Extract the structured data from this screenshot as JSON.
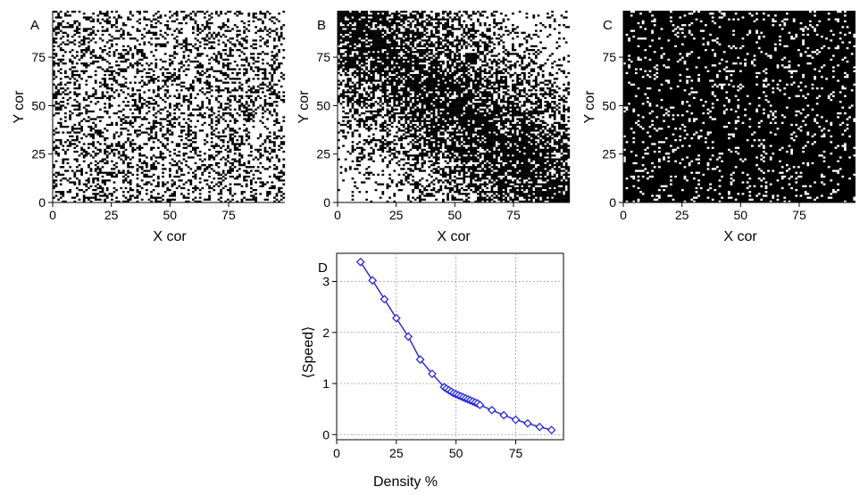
{
  "colors": {
    "line": "#1f1fe0",
    "grid": "#9a9a9a",
    "occupied_A_B": "#000000",
    "empty_A_B": "#ffffff",
    "occupied_C": "#ffffff",
    "empty_C": "#000000"
  },
  "chart_data": [
    {
      "panel": "A",
      "type": "heatmap",
      "description_encoding": "binary lattice occupancy, black = occupied",
      "xlabel": "X cor",
      "ylabel": "Y cor",
      "xlim": [
        0,
        99
      ],
      "ylim": [
        0,
        99
      ],
      "xticks": [
        "0",
        "25",
        "50",
        "75"
      ],
      "yticks": [
        "0",
        "25",
        "50",
        "75"
      ],
      "grid_size": [
        100,
        100
      ],
      "occupied_fraction": 0.3,
      "pattern": "uniform"
    },
    {
      "panel": "B",
      "type": "heatmap",
      "description_encoding": "binary lattice occupancy, black = occupied",
      "xlabel": "X cor",
      "ylabel": "Y cor",
      "xlim": [
        0,
        99
      ],
      "ylim": [
        0,
        99
      ],
      "xticks": [
        "0",
        "25",
        "50",
        "75"
      ],
      "yticks": [
        "0",
        "25",
        "50",
        "75"
      ],
      "grid_size": [
        100,
        100
      ],
      "occupied_fraction": 0.55,
      "pattern": "diagonal band"
    },
    {
      "panel": "C",
      "type": "heatmap",
      "description_encoding": "binary lattice occupancy, white = occupied",
      "xlabel": "X cor",
      "ylabel": "Y cor",
      "xlim": [
        0,
        99
      ],
      "ylim": [
        0,
        99
      ],
      "xticks": [
        "0",
        "25",
        "50",
        "75"
      ],
      "yticks": [
        "0",
        "25",
        "50",
        "75"
      ],
      "grid_size": [
        100,
        100
      ],
      "occupied_fraction": 0.1,
      "pattern": "uniform"
    },
    {
      "panel": "D",
      "type": "line",
      "xlabel": "Density %",
      "ylabel": "⟨Speed⟩",
      "xlim": [
        0,
        95
      ],
      "ylim": [
        -0.1,
        3.55
      ],
      "xticks": [
        0,
        25,
        50,
        75
      ],
      "yticks": [
        0,
        1,
        2,
        3
      ],
      "grid": true,
      "marker": "diamond",
      "x": [
        10,
        15,
        20,
        25,
        30,
        35,
        40,
        45,
        46,
        47,
        48,
        49,
        50,
        51,
        52,
        53,
        54,
        55,
        56,
        57,
        58,
        59,
        60,
        65,
        70,
        75,
        80,
        85,
        90
      ],
      "y": [
        3.38,
        3.02,
        2.65,
        2.28,
        1.92,
        1.47,
        1.19,
        0.93,
        0.9,
        0.87,
        0.84,
        0.81,
        0.79,
        0.77,
        0.75,
        0.73,
        0.71,
        0.69,
        0.67,
        0.65,
        0.63,
        0.61,
        0.58,
        0.48,
        0.38,
        0.29,
        0.22,
        0.15,
        0.09
      ]
    }
  ]
}
